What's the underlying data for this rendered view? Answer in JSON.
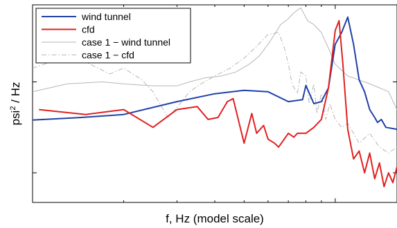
{
  "chart_data": {
    "type": "line",
    "title": "",
    "xlabel": "f, Hz  (model scale)",
    "ylabel_main": "psi",
    "ylabel_sup": "2",
    "ylabel_tail": " / Hz",
    "x_scale": "log",
    "xlim": [
      0.1,
      1.6
    ],
    "y_scale": "log",
    "ylim": [
      0,
      1
    ],
    "x_tick_labels": [],
    "y_tick_labels": [],
    "grid": false,
    "legend_position": "top-left",
    "series": [
      {
        "name": "wind tunnel",
        "color": "#1f3fa6",
        "style": "solid",
        "width": 2,
        "x": [
          0.1,
          0.145,
          0.2,
          0.3,
          0.4,
          0.5,
          0.6,
          0.7,
          0.78,
          0.8,
          0.85,
          0.9,
          0.95,
          1.0,
          1.05,
          1.1,
          1.15,
          1.2,
          1.25,
          1.3,
          1.35,
          1.38,
          1.42,
          1.47,
          1.6
        ],
        "y": [
          0.417,
          0.43,
          0.445,
          0.51,
          0.55,
          0.567,
          0.56,
          0.51,
          0.52,
          0.592,
          0.5,
          0.51,
          0.58,
          0.8,
          0.86,
          0.938,
          0.8,
          0.62,
          0.56,
          0.47,
          0.43,
          0.405,
          0.42,
          0.38,
          0.37
        ]
      },
      {
        "name": "cfd",
        "color": "#e02020",
        "style": "solid",
        "width": 2,
        "x": [
          0.105,
          0.15,
          0.2,
          0.25,
          0.3,
          0.35,
          0.38,
          0.41,
          0.44,
          0.46,
          0.5,
          0.53,
          0.55,
          0.58,
          0.6,
          0.63,
          0.65,
          0.7,
          0.73,
          0.75,
          0.8,
          0.85,
          0.9,
          0.95,
          1.0,
          1.03,
          1.06,
          1.1,
          1.15,
          1.2,
          1.25,
          1.3,
          1.35,
          1.4,
          1.45,
          1.5,
          1.55,
          1.6
        ],
        "y": [
          0.47,
          0.445,
          0.47,
          0.38,
          0.47,
          0.485,
          0.42,
          0.43,
          0.51,
          0.525,
          0.3,
          0.45,
          0.35,
          0.39,
          0.32,
          0.3,
          0.28,
          0.35,
          0.33,
          0.35,
          0.35,
          0.38,
          0.42,
          0.58,
          0.87,
          0.92,
          0.7,
          0.37,
          0.22,
          0.26,
          0.15,
          0.25,
          0.12,
          0.2,
          0.08,
          0.15,
          0.1,
          0.18
        ]
      },
      {
        "name": "case 1 − wind tunnel",
        "color": "#b5b5b5",
        "style": "solid",
        "width": 1,
        "x": [
          0.1,
          0.13,
          0.17,
          0.2,
          0.25,
          0.3,
          0.33,
          0.37,
          0.42,
          0.47,
          0.52,
          0.56,
          0.6,
          0.63,
          0.66,
          0.7,
          0.73,
          0.77,
          0.81,
          0.85,
          0.9,
          0.95,
          1.0,
          1.1,
          1.2,
          1.3,
          1.4,
          1.5,
          1.6
        ],
        "y": [
          0.56,
          0.6,
          0.61,
          0.6,
          0.59,
          0.59,
          0.61,
          0.63,
          0.64,
          0.66,
          0.7,
          0.74,
          0.8,
          0.85,
          0.9,
          0.93,
          0.96,
          0.985,
          0.92,
          0.9,
          0.86,
          0.78,
          0.7,
          0.64,
          0.62,
          0.6,
          0.58,
          0.56,
          0.47
        ]
      },
      {
        "name": "case 1 − cfd",
        "color": "#b5b5b5",
        "style": "dashdot",
        "width": 1,
        "x": [
          0.1,
          0.12,
          0.15,
          0.18,
          0.2,
          0.23,
          0.25,
          0.28,
          0.3,
          0.33,
          0.36,
          0.4,
          0.45,
          0.5,
          0.55,
          0.6,
          0.65,
          0.68,
          0.7,
          0.72,
          0.75,
          0.77,
          0.8,
          0.82,
          0.85,
          0.87,
          0.9,
          0.93,
          0.96,
          1.0,
          1.05,
          1.1,
          1.15,
          1.2,
          1.3,
          1.4,
          1.5,
          1.6
        ],
        "y": [
          0.68,
          0.72,
          0.71,
          0.65,
          0.68,
          0.62,
          0.56,
          0.43,
          0.48,
          0.56,
          0.6,
          0.64,
          0.68,
          0.73,
          0.79,
          0.85,
          0.86,
          0.78,
          0.7,
          0.6,
          0.55,
          0.66,
          0.64,
          0.5,
          0.6,
          0.45,
          0.55,
          0.42,
          0.5,
          0.42,
          0.38,
          0.4,
          0.35,
          0.3,
          0.35,
          0.28,
          0.25,
          0.28
        ]
      }
    ]
  }
}
